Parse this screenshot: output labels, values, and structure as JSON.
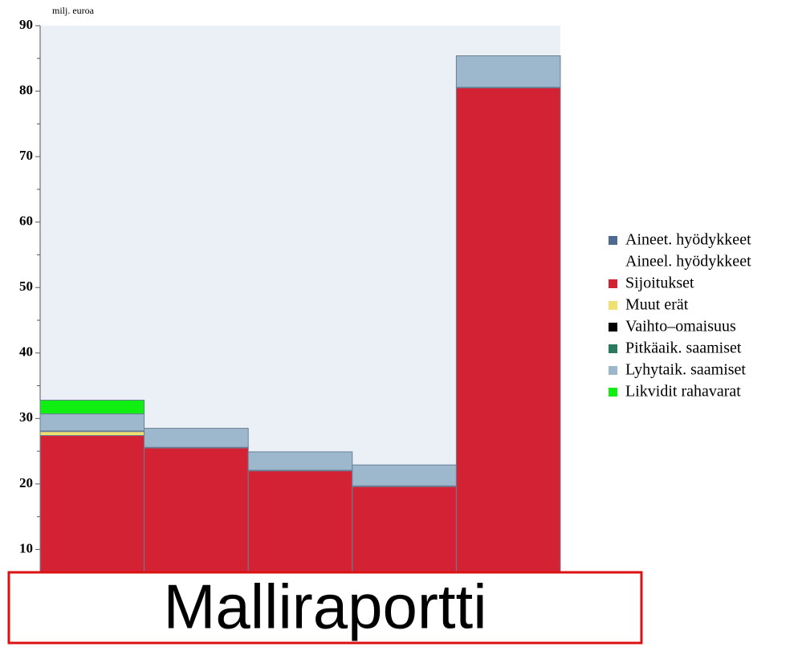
{
  "chart_data": {
    "type": "stacked_bar",
    "unit_label": "milj. euroa",
    "banner": "Malliraportti",
    "categories": [
      null,
      null,
      null,
      null,
      null
    ],
    "series": [
      {
        "name": "Aineet. hyödykkeet",
        "color": "#4f6a8f",
        "values": [
          0.1,
          0.1,
          0.1,
          0.1,
          0.1
        ]
      },
      {
        "name": "Aineel. hyödykkeet",
        "color": "none",
        "values": [
          0,
          0,
          0,
          0,
          0
        ]
      },
      {
        "name": "Sijoitukset",
        "color": "#d32233",
        "values": [
          27.3,
          25.4,
          21.9,
          19.5,
          80.4
        ]
      },
      {
        "name": "Muut erät",
        "color": "#f0e070",
        "values": [
          0.6,
          0,
          0,
          0,
          0
        ]
      },
      {
        "name": "Vaihto–omaisuus",
        "color": "#000000",
        "values": [
          0,
          0,
          0,
          0,
          0
        ]
      },
      {
        "name": "Pitkäaik. saamiset",
        "color": "#2a7a5e",
        "values": [
          0.1,
          0.1,
          0.1,
          0.1,
          0.1
        ]
      },
      {
        "name": "Lyhytaik. saamiset",
        "color": "#9db8cc",
        "values": [
          2.6,
          2.9,
          2.8,
          3.2,
          4.8
        ]
      },
      {
        "name": "Likvidit rahavarat",
        "color": "#11ee11",
        "values": [
          2.1,
          0,
          0,
          0,
          0
        ]
      }
    ],
    "ylim": [
      0,
      90
    ],
    "yticks": [
      10,
      20,
      30,
      40,
      50,
      60,
      70,
      80,
      90
    ],
    "yminorticks": [
      15,
      25,
      35,
      45,
      55,
      65,
      75,
      85
    ]
  }
}
